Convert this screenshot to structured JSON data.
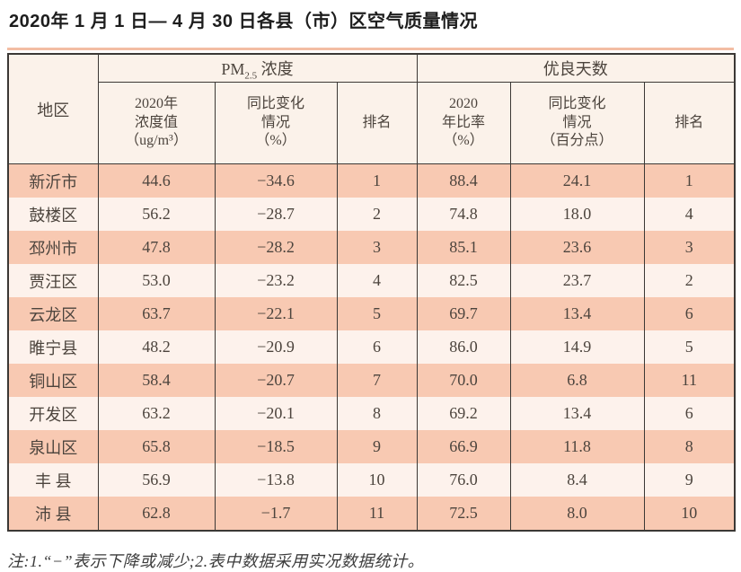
{
  "title": "2020年 1 月 1 日— 4 月 30 日各县（市）区空气质量情况",
  "table": {
    "region_header": "地区",
    "group_pm": {
      "prefix": "PM",
      "sub": "2.5",
      "suffix": " 浓度"
    },
    "group_days": "优良天数",
    "col_headers": [
      "2020年\n浓度值\n（ug/m³）",
      "同比变化\n情况\n（%）",
      "排名",
      "2020\n年比率\n（%）",
      "同比变化\n情况\n（百分点）",
      "排名"
    ],
    "rows": [
      {
        "region": "新沂市",
        "pm_value": "44.6",
        "pm_change": "−34.6",
        "pm_rank": "1",
        "days_rate": "88.4",
        "days_change": "24.1",
        "days_rank": "1"
      },
      {
        "region": "鼓楼区",
        "pm_value": "56.2",
        "pm_change": "−28.7",
        "pm_rank": "2",
        "days_rate": "74.8",
        "days_change": "18.0",
        "days_rank": "4"
      },
      {
        "region": "邳州市",
        "pm_value": "47.8",
        "pm_change": "−28.2",
        "pm_rank": "3",
        "days_rate": "85.1",
        "days_change": "23.6",
        "days_rank": "3"
      },
      {
        "region": "贾汪区",
        "pm_value": "53.0",
        "pm_change": "−23.2",
        "pm_rank": "4",
        "days_rate": "82.5",
        "days_change": "23.7",
        "days_rank": "2"
      },
      {
        "region": "云龙区",
        "pm_value": "63.7",
        "pm_change": "−22.1",
        "pm_rank": "5",
        "days_rate": "69.7",
        "days_change": "13.4",
        "days_rank": "6"
      },
      {
        "region": "睢宁县",
        "pm_value": "48.2",
        "pm_change": "−20.9",
        "pm_rank": "6",
        "days_rate": "86.0",
        "days_change": "14.9",
        "days_rank": "5"
      },
      {
        "region": "铜山区",
        "pm_value": "58.4",
        "pm_change": "−20.7",
        "pm_rank": "7",
        "days_rate": "70.0",
        "days_change": "6.8",
        "days_rank": "11"
      },
      {
        "region": "开发区",
        "pm_value": "63.2",
        "pm_change": "−20.1",
        "pm_rank": "8",
        "days_rate": "69.2",
        "days_change": "13.4",
        "days_rank": "6"
      },
      {
        "region": "泉山区",
        "pm_value": "65.8",
        "pm_change": "−18.5",
        "pm_rank": "9",
        "days_rate": "66.9",
        "days_change": "11.8",
        "days_rank": "8"
      },
      {
        "region": "丰 县",
        "pm_value": "56.9",
        "pm_change": "−13.8",
        "pm_rank": "10",
        "days_rate": "76.0",
        "days_change": "8.4",
        "days_rank": "9"
      },
      {
        "region": "沛 县",
        "pm_value": "62.8",
        "pm_change": "−1.7",
        "pm_rank": "11",
        "days_rate": "72.5",
        "days_change": "8.0",
        "days_rank": "10"
      }
    ]
  },
  "note": "注:1.“−”表示下降或减少;2.表中数据采用实况数据统计。",
  "colors": {
    "row_salmon": "#f8c9b2",
    "row_light": "#fdf2ec",
    "header_bg": "#fbf2ea",
    "accent_line": "#f3bda4",
    "border_dark": "#3b3835",
    "text_title": "#1d1d1d",
    "text_body": "#4c443d",
    "text_note": "#3c3c3c"
  }
}
